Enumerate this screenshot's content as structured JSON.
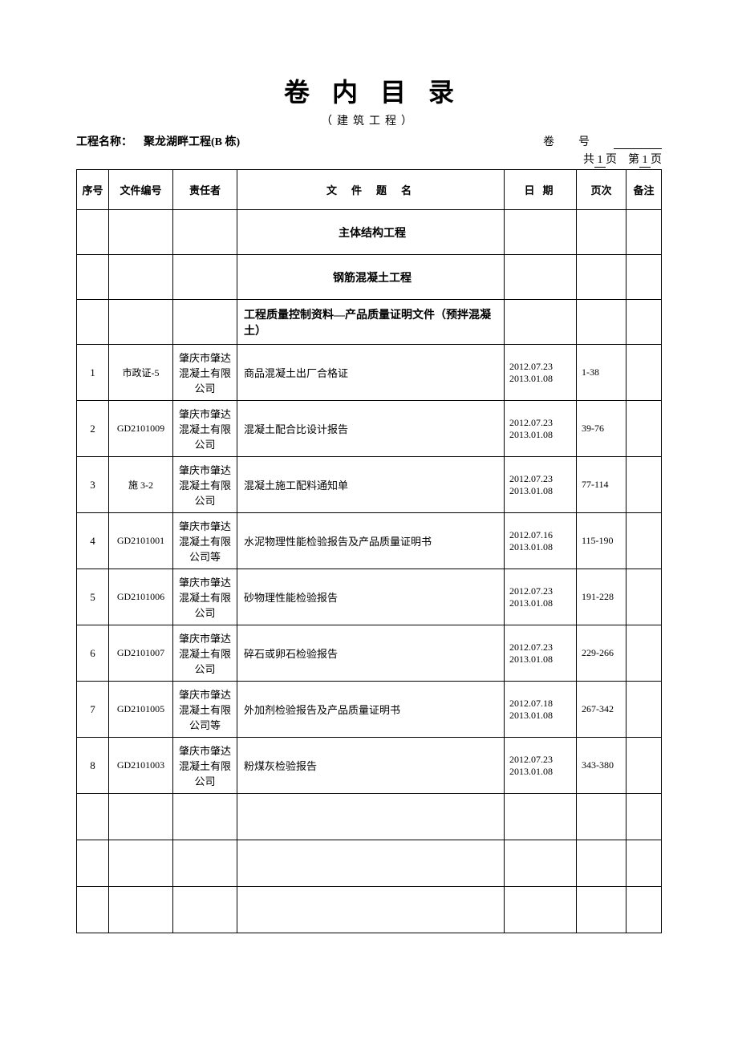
{
  "page": {
    "title": "卷内目录",
    "subtitle": "（建筑工程）",
    "project_label": "工程名称：",
    "project_name": "聚龙湖畔工程(B 栋)",
    "volume_label_a": "卷",
    "volume_label_b": "号",
    "pages_total_prefix": "共",
    "pages_total_value": "1",
    "pages_total_suffix": "页",
    "pages_current_prefix": "第",
    "pages_current_value": "1",
    "pages_current_suffix": "页"
  },
  "columns": {
    "seq": "序号",
    "docno": "文件编号",
    "resp": "责任者",
    "title": "文件题名",
    "date": "日期",
    "page": "页次",
    "remark": "备注"
  },
  "sections": [
    {
      "title": "主体结构工程",
      "centered": true
    },
    {
      "title": "钢筋混凝土工程",
      "centered": true
    },
    {
      "title": "工程质量控制资料—产品质量证明文件（预拌混凝土）",
      "centered": false
    }
  ],
  "rows": [
    {
      "seq": "1",
      "docno": "市政证-5",
      "resp": "肇庆市肇达混凝土有限公司",
      "title": "商品混凝土出厂合格证",
      "date_a": "2012.07.23",
      "date_b": "2013.01.08",
      "page": "1-38",
      "remark": ""
    },
    {
      "seq": "2",
      "docno": "GD2101009",
      "resp": "肇庆市肇达混凝土有限公司",
      "title": "混凝土配合比设计报告",
      "date_a": "2012.07.23",
      "date_b": "2013.01.08",
      "page": "39-76",
      "remark": ""
    },
    {
      "seq": "3",
      "docno": "施 3-2",
      "resp": "肇庆市肇达混凝土有限公司",
      "title": "混凝土施工配料通知单",
      "date_a": "2012.07.23",
      "date_b": "2013.01.08",
      "page": "77-114",
      "remark": ""
    },
    {
      "seq": "4",
      "docno": "GD2101001",
      "resp": "肇庆市肇达混凝土有限公司等",
      "title": "水泥物理性能检验报告及产品质量证明书",
      "date_a": "2012.07.16",
      "date_b": "2013.01.08",
      "page": "115-190",
      "remark": ""
    },
    {
      "seq": "5",
      "docno": "GD2101006",
      "resp": "肇庆市肇达混凝土有限公司",
      "title": "砂物理性能检验报告",
      "date_a": "2012.07.23",
      "date_b": "2013.01.08",
      "page": "191-228",
      "remark": ""
    },
    {
      "seq": "6",
      "docno": "GD2101007",
      "resp": "肇庆市肇达混凝土有限公司",
      "title": "碎石或卵石检验报告",
      "date_a": "2012.07.23",
      "date_b": "2013.01.08",
      "page": "229-266",
      "remark": ""
    },
    {
      "seq": "7",
      "docno": "GD2101005",
      "resp": "肇庆市肇达混凝土有限公司等",
      "title": "外加剂检验报告及产品质量证明书",
      "date_a": "2012.07.18",
      "date_b": "2013.01.08",
      "page": "267-342",
      "remark": ""
    },
    {
      "seq": "8",
      "docno": "GD2101003",
      "resp": "肇庆市肇达混凝土有限公司",
      "title": "粉煤灰检验报告",
      "date_a": "2012.07.23",
      "date_b": "2013.01.08",
      "page": "343-380",
      "remark": ""
    }
  ],
  "empty_rows": 3,
  "style": {
    "background_color": "#ffffff",
    "text_color": "#000000",
    "border_color": "#000000",
    "title_fontsize": 32,
    "body_fontsize": 13,
    "font_family": "SimSun"
  }
}
